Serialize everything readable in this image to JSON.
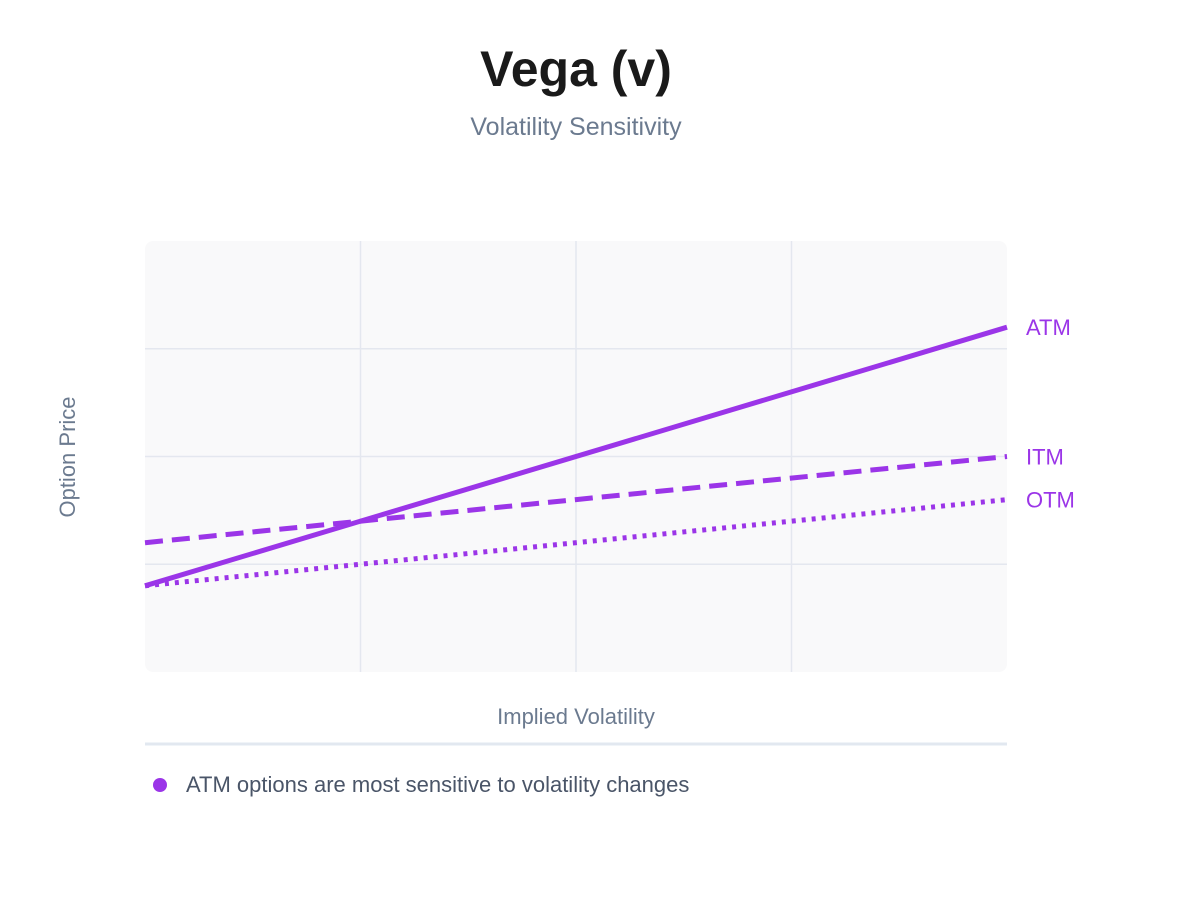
{
  "title": "Vega (v)",
  "subtitle": "Volatility Sensitivity",
  "colors": {
    "series": "#9b35e8",
    "grid": "#e4e7ef",
    "plot_bg": "#f9f9fa",
    "axis_text": "#6b7a8f",
    "divider": "#e2e8f0"
  },
  "legend_note": {
    "dot_color": "#9b35e8",
    "text": "ATM options are most sensitive to volatility changes"
  },
  "chart_data": {
    "type": "line",
    "xlabel": "Implied Volatility",
    "ylabel": "Option Price",
    "x": [
      0,
      4
    ],
    "xlim": [
      0,
      4
    ],
    "ylim": [
      0,
      4
    ],
    "grid": true,
    "tick_labels_shown": false,
    "series": [
      {
        "name": "ATM",
        "style": "solid",
        "values": [
          0.8,
          3.2
        ]
      },
      {
        "name": "ITM",
        "style": "dashed",
        "values": [
          1.2,
          2.0
        ]
      },
      {
        "name": "OTM",
        "style": "dotted",
        "values": [
          0.8,
          1.6
        ]
      }
    ]
  }
}
